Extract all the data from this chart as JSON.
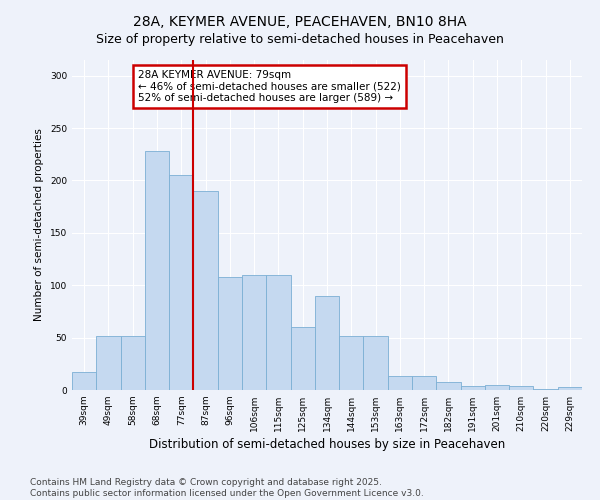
{
  "title": "28A, KEYMER AVENUE, PEACEHAVEN, BN10 8HA",
  "subtitle": "Size of property relative to semi-detached houses in Peacehaven",
  "xlabel": "Distribution of semi-detached houses by size in Peacehaven",
  "ylabel": "Number of semi-detached properties",
  "categories": [
    "39sqm",
    "49sqm",
    "58sqm",
    "68sqm",
    "77sqm",
    "87sqm",
    "96sqm",
    "106sqm",
    "115sqm",
    "125sqm",
    "134sqm",
    "144sqm",
    "153sqm",
    "163sqm",
    "172sqm",
    "182sqm",
    "191sqm",
    "201sqm",
    "210sqm",
    "220sqm",
    "229sqm"
  ],
  "values": [
    17,
    52,
    52,
    228,
    205,
    190,
    108,
    110,
    110,
    60,
    90,
    52,
    52,
    13,
    13,
    8,
    4,
    5,
    4,
    1,
    3
  ],
  "bar_color": "#c5d9f0",
  "bar_edge_color": "#7bafd4",
  "vertical_line_x": 4.5,
  "annotation_text": "28A KEYMER AVENUE: 79sqm\n← 46% of semi-detached houses are smaller (522)\n52% of semi-detached houses are larger (589) →",
  "annotation_box_color": "#ffffff",
  "annotation_box_edge_color": "#cc0000",
  "vline_color": "#cc0000",
  "ylim": [
    0,
    315
  ],
  "yticks": [
    0,
    50,
    100,
    150,
    200,
    250,
    300
  ],
  "background_color": "#eef2fa",
  "grid_color": "#ffffff",
  "footer_text": "Contains HM Land Registry data © Crown copyright and database right 2025.\nContains public sector information licensed under the Open Government Licence v3.0.",
  "title_fontsize": 10,
  "subtitle_fontsize": 9,
  "xlabel_fontsize": 8.5,
  "ylabel_fontsize": 7.5,
  "tick_fontsize": 6.5,
  "annotation_fontsize": 7.5,
  "footer_fontsize": 6.5
}
